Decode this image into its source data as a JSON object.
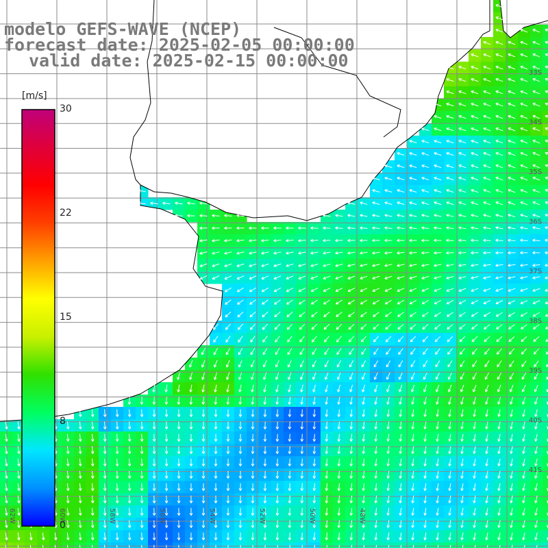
{
  "title": {
    "model": "modelo GEFS-WAVE (NCEP)",
    "forecast": "forecast date: 2025-02-05 00:00:00",
    "valid": "valid date: 2025-02-15 00:00:00"
  },
  "colorbar": {
    "unit": "[m/s]",
    "ticks": [
      "30",
      "22",
      "15",
      "8",
      "0"
    ],
    "tick_values": [
      30,
      22,
      15,
      8,
      0
    ],
    "range": [
      0,
      30
    ],
    "colors": [
      "#0000ff",
      "#0090ff",
      "#00e6ff",
      "#00ff60",
      "#30e000",
      "#c8f000",
      "#ffff00",
      "#ffa000",
      "#ff4000",
      "#ff0000",
      "#e0003a",
      "#c0007a"
    ]
  },
  "map": {
    "lat_labels": [
      "33S",
      "34S",
      "35S",
      "36S",
      "37S",
      "38S",
      "39S",
      "40S",
      "41S"
    ],
    "lon_labels": [
      "62W",
      "60W",
      "58W",
      "56W",
      "54W",
      "52W",
      "50W",
      "48W"
    ],
    "land_color": "#ffffff",
    "grid_color": "#8a8a8a",
    "arrow_color": "#ffffff"
  }
}
